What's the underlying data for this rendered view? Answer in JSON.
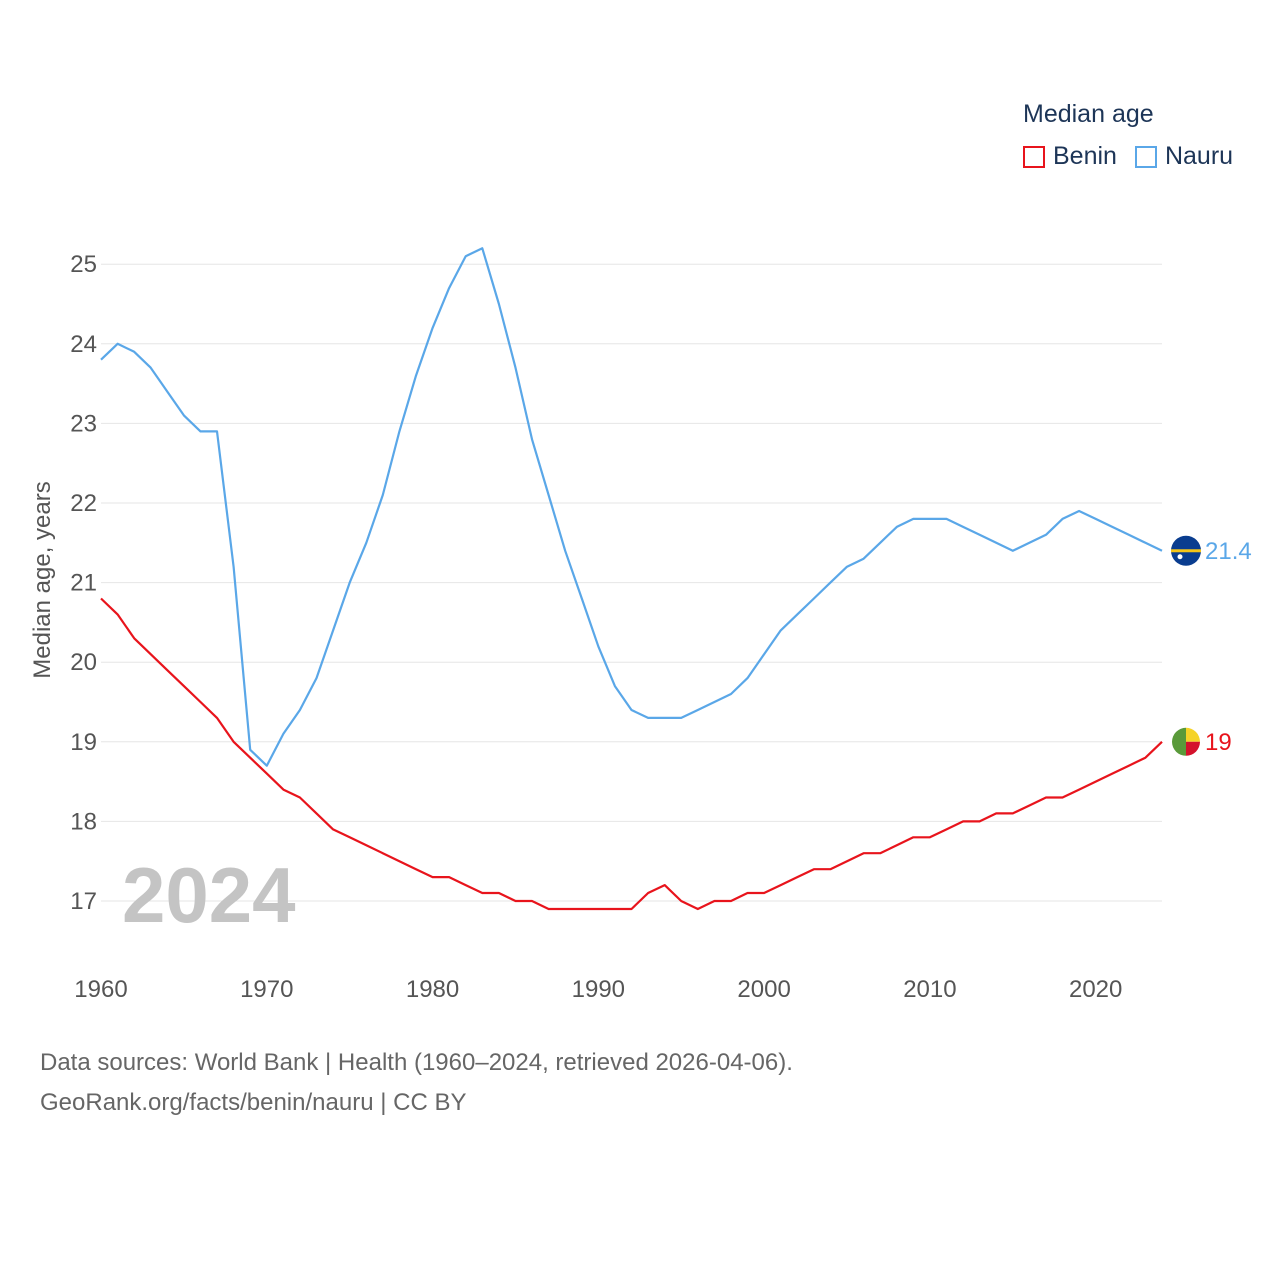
{
  "legend": {
    "title": "Median age",
    "items": [
      {
        "name": "Benin",
        "color": "#e8141c"
      },
      {
        "name": "Nauru",
        "color": "#5aa7e8"
      }
    ]
  },
  "footer": {
    "line1": "Data sources: World Bank | Health (1960–2024, retrieved 2026-04-06).",
    "line2": "GeoRank.org/facts/benin/nauru | CC BY"
  },
  "chart_data": {
    "type": "line",
    "title": "Median age",
    "current_year": "2024",
    "xlabel": "",
    "ylabel": "Median age, years",
    "xlim": [
      1960,
      2024
    ],
    "ylim": [
      16.2,
      25.8
    ],
    "x_ticks": [
      1960,
      1970,
      1980,
      1990,
      2000,
      2010,
      2020
    ],
    "y_ticks": [
      17,
      18,
      19,
      20,
      21,
      22,
      23,
      24,
      25
    ],
    "grid": true,
    "legend_position": "top-right",
    "series": [
      {
        "name": "Benin",
        "color": "#e8141c",
        "end_label": "19",
        "flag_icon": "benin-flag-icon",
        "x": [
          1960,
          1961,
          1962,
          1963,
          1964,
          1965,
          1966,
          1967,
          1968,
          1969,
          1970,
          1971,
          1972,
          1973,
          1974,
          1975,
          1976,
          1977,
          1978,
          1979,
          1980,
          1981,
          1982,
          1983,
          1984,
          1985,
          1986,
          1987,
          1988,
          1989,
          1990,
          1991,
          1992,
          1993,
          1994,
          1995,
          1996,
          1997,
          1998,
          1999,
          2000,
          2001,
          2002,
          2003,
          2004,
          2005,
          2006,
          2007,
          2008,
          2009,
          2010,
          2011,
          2012,
          2013,
          2014,
          2015,
          2016,
          2017,
          2018,
          2019,
          2020,
          2021,
          2022,
          2023,
          2024
        ],
        "values": [
          20.8,
          20.6,
          20.3,
          20.1,
          19.9,
          19.7,
          19.5,
          19.3,
          19.0,
          18.8,
          18.6,
          18.4,
          18.3,
          18.1,
          17.9,
          17.8,
          17.7,
          17.6,
          17.5,
          17.4,
          17.3,
          17.3,
          17.2,
          17.1,
          17.1,
          17.0,
          17.0,
          16.9,
          16.9,
          16.9,
          16.9,
          16.9,
          16.9,
          17.1,
          17.2,
          17.0,
          16.9,
          17.0,
          17.0,
          17.1,
          17.1,
          17.2,
          17.3,
          17.4,
          17.4,
          17.5,
          17.6,
          17.6,
          17.7,
          17.8,
          17.8,
          17.9,
          18.0,
          18.0,
          18.1,
          18.1,
          18.2,
          18.3,
          18.3,
          18.4,
          18.5,
          18.6,
          18.7,
          18.8,
          19.0
        ]
      },
      {
        "name": "Nauru",
        "color": "#5aa7e8",
        "end_label": "21.4",
        "flag_icon": "nauru-flag-icon",
        "x": [
          1960,
          1961,
          1962,
          1963,
          1964,
          1965,
          1966,
          1967,
          1968,
          1969,
          1970,
          1971,
          1972,
          1973,
          1974,
          1975,
          1976,
          1977,
          1978,
          1979,
          1980,
          1981,
          1982,
          1983,
          1984,
          1985,
          1986,
          1987,
          1988,
          1989,
          1990,
          1991,
          1992,
          1993,
          1994,
          1995,
          1996,
          1997,
          1998,
          1999,
          2000,
          2001,
          2002,
          2003,
          2004,
          2005,
          2006,
          2007,
          2008,
          2009,
          2010,
          2011,
          2012,
          2013,
          2014,
          2015,
          2016,
          2017,
          2018,
          2019,
          2020,
          2021,
          2022,
          2023,
          2024
        ],
        "values": [
          23.8,
          24.0,
          23.9,
          23.7,
          23.4,
          23.1,
          22.9,
          22.9,
          21.2,
          18.9,
          18.7,
          19.1,
          19.4,
          19.8,
          20.4,
          21.0,
          21.5,
          22.1,
          22.9,
          23.6,
          24.2,
          24.7,
          25.1,
          25.2,
          24.5,
          23.7,
          22.8,
          22.1,
          21.4,
          20.8,
          20.2,
          19.7,
          19.4,
          19.3,
          19.3,
          19.3,
          19.4,
          19.5,
          19.6,
          19.8,
          20.1,
          20.4,
          20.6,
          20.8,
          21.0,
          21.2,
          21.3,
          21.5,
          21.7,
          21.8,
          21.8,
          21.8,
          21.7,
          21.6,
          21.5,
          21.4,
          21.5,
          21.6,
          21.8,
          21.9,
          21.8,
          21.7,
          21.6,
          21.5,
          21.4
        ]
      }
    ]
  }
}
